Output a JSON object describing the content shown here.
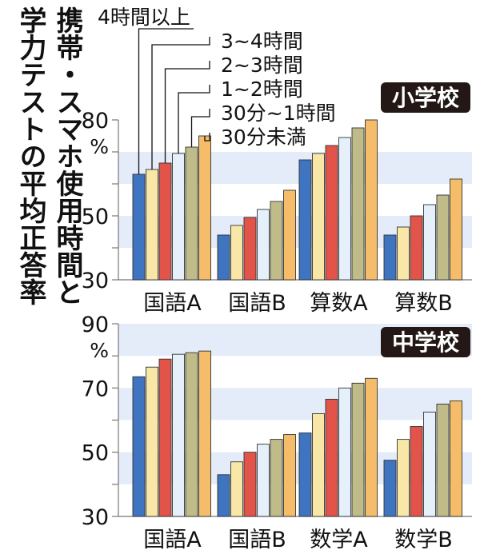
{
  "title": {
    "line1": "携帯・スマホ使用時間と",
    "line2": "学力テストの平均正答率"
  },
  "unit": "%",
  "legend": [
    "4時間以上",
    "3~4時間",
    "2~3時間",
    "1~2時間",
    "30分~1時間",
    "30分未満"
  ],
  "colors": {
    "series": [
      "#3e74c0",
      "#f8e7a6",
      "#e25449",
      "#e5f0fa",
      "#bfbc8a",
      "#f5bc69"
    ],
    "stripe": "#e3ecf8",
    "axis": "#777777",
    "badge": "#231815"
  },
  "chart_data": [
    {
      "type": "bar",
      "title": "小学校",
      "ylim": [
        30,
        80
      ],
      "yticks": [
        30,
        50,
        80
      ],
      "categories": [
        "国語A",
        "国語B",
        "算数A",
        "算数B"
      ],
      "series": [
        {
          "name": "4時間以上",
          "values": [
            63.0,
            44.0,
            67.5,
            44.0
          ]
        },
        {
          "name": "3~4時間",
          "values": [
            64.5,
            47.0,
            69.5,
            46.5
          ]
        },
        {
          "name": "2~3時間",
          "values": [
            66.5,
            49.5,
            72.0,
            50.0
          ]
        },
        {
          "name": "1~2時間",
          "values": [
            69.5,
            52.0,
            74.5,
            53.5
          ]
        },
        {
          "name": "30分~1時間",
          "values": [
            71.5,
            54.5,
            77.5,
            56.5
          ]
        },
        {
          "name": "30分未満",
          "values": [
            75.0,
            58.0,
            80.0,
            61.5
          ]
        }
      ]
    },
    {
      "type": "bar",
      "title": "中学校",
      "ylim": [
        30,
        90
      ],
      "yticks": [
        30,
        50,
        70,
        90
      ],
      "categories": [
        "国語A",
        "国語B",
        "数学A",
        "数学B"
      ],
      "series": [
        {
          "name": "4時間以上",
          "values": [
            73.5,
            43.0,
            56.0,
            47.5
          ]
        },
        {
          "name": "3~4時間",
          "values": [
            76.5,
            47.0,
            62.0,
            54.0
          ]
        },
        {
          "name": "2~3時間",
          "values": [
            79.0,
            50.0,
            66.5,
            58.0
          ]
        },
        {
          "name": "1~2時間",
          "values": [
            80.5,
            52.5,
            70.0,
            62.5
          ]
        },
        {
          "name": "30分~1時間",
          "values": [
            81.0,
            54.0,
            71.5,
            65.0
          ]
        },
        {
          "name": "30分未満",
          "values": [
            81.5,
            55.5,
            73.0,
            66.0
          ]
        }
      ]
    }
  ]
}
